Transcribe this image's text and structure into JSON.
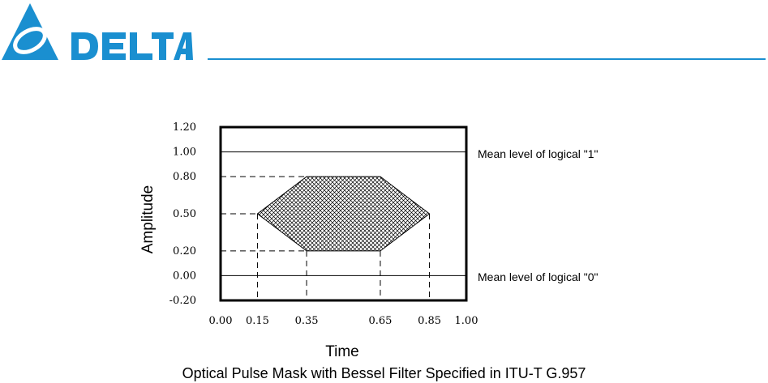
{
  "brand": {
    "name": "DELTA",
    "color": "#1a8fd0",
    "icon": "delta-triangle-logo-icon"
  },
  "diagram": {
    "ylabel": "Amplitude",
    "xlabel": "Time",
    "y_ticks": [
      "1.20",
      "1.00",
      "0.80",
      "0.50",
      "0.20",
      "0.00",
      "-0.20"
    ],
    "x_ticks": [
      "0.00",
      "0.15",
      "0.35",
      "0.65",
      "0.85",
      "1.00"
    ],
    "annotation_one": "Mean level of logical \"1\"",
    "annotation_zero": "Mean level of logical \"0\"",
    "caption": "Optical Pulse Mask with Bessel Filter Specified in ITU-T G.957"
  },
  "chart_data": {
    "type": "area",
    "title": "Optical Pulse Mask with Bessel Filter Specified in ITU-T G.957",
    "xlabel": "Time",
    "ylabel": "Amplitude",
    "xlim": [
      0.0,
      1.0
    ],
    "ylim": [
      -0.2,
      1.2
    ],
    "mean_levels": [
      {
        "name": "Mean level of logical \"1\"",
        "y": 1.0
      },
      {
        "name": "Mean level of logical \"0\"",
        "y": 0.0
      }
    ],
    "mask_polygon": [
      {
        "x": 0.15,
        "y": 0.5
      },
      {
        "x": 0.35,
        "y": 0.8
      },
      {
        "x": 0.65,
        "y": 0.8
      },
      {
        "x": 0.85,
        "y": 0.5
      },
      {
        "x": 0.65,
        "y": 0.2
      },
      {
        "x": 0.35,
        "y": 0.2
      }
    ],
    "grid": false
  }
}
